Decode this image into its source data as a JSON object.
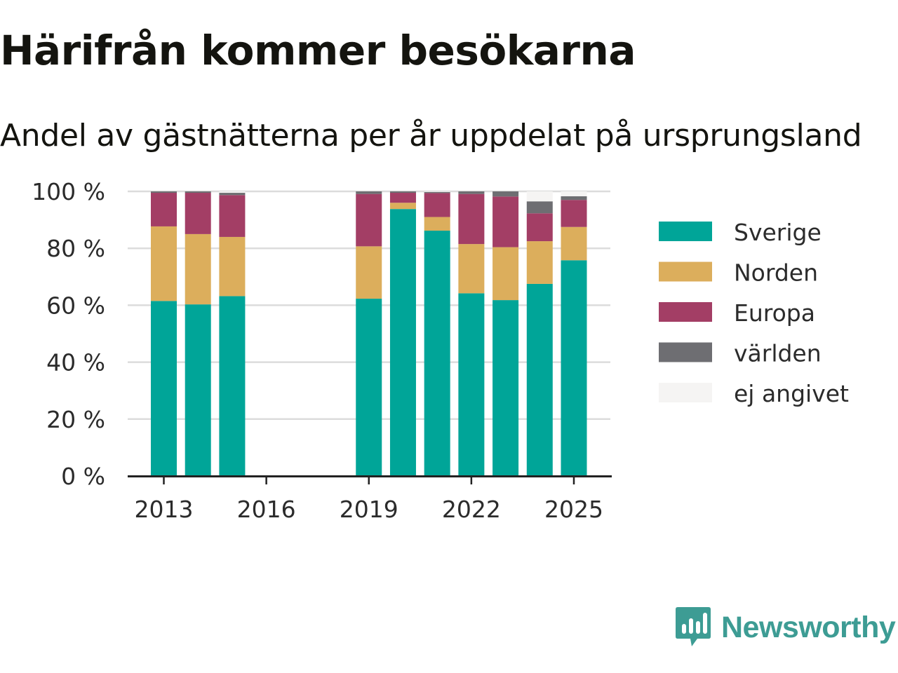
{
  "title": "Härifrån kommer besökarna",
  "subtitle": "Andel av gästnätterna per år uppdelat på ursprungsland",
  "brand": {
    "name": "Newsworthy",
    "icon": "newsworthy-logo-icon",
    "color": "#3d9c94"
  },
  "chart_data": {
    "type": "bar",
    "stacked": true,
    "title": "Härifrån kommer besökarna",
    "subtitle": "Andel av gästnätterna per år uppdelat på ursprungsland",
    "xlabel": "",
    "ylabel": "",
    "x": [
      2013,
      2014,
      2015,
      2016,
      2017,
      2018,
      2019,
      2020,
      2021,
      2022,
      2023,
      2024,
      2025
    ],
    "xticks": [
      "2013",
      "2016",
      "2019",
      "2022",
      "2025"
    ],
    "yticks": [
      "0 %",
      "20 %",
      "40 %",
      "60 %",
      "80 %",
      "100 %"
    ],
    "ylim": [
      0,
      100
    ],
    "grid": true,
    "legend_position": "right",
    "series": [
      {
        "name": "Sverige",
        "color": "#00a598",
        "values": [
          61.5,
          60.3,
          63.2,
          null,
          null,
          null,
          62.3,
          93.8,
          86.2,
          64.2,
          61.8,
          67.5,
          75.8
        ]
      },
      {
        "name": "Norden",
        "color": "#dcae5c",
        "values": [
          26.2,
          24.7,
          20.8,
          null,
          null,
          null,
          18.4,
          2.2,
          4.8,
          17.3,
          18.6,
          15.0,
          11.7
        ]
      },
      {
        "name": "Europa",
        "color": "#a33e65",
        "values": [
          11.8,
          14.5,
          14.7,
          null,
          null,
          null,
          18.4,
          3.5,
          8.4,
          17.6,
          17.8,
          9.8,
          9.5
        ]
      },
      {
        "name": "världen",
        "color": "#6e6e72",
        "values": [
          0.5,
          0.5,
          0.8,
          null,
          null,
          null,
          0.9,
          0.5,
          0.4,
          0.9,
          1.8,
          4.2,
          1.3
        ]
      },
      {
        "name": "ej angivet",
        "color": "#f5f4f3",
        "values": [
          0.0,
          0.0,
          0.5,
          null,
          null,
          null,
          0.0,
          0.0,
          0.2,
          0.0,
          0.0,
          3.5,
          1.7
        ]
      }
    ]
  }
}
